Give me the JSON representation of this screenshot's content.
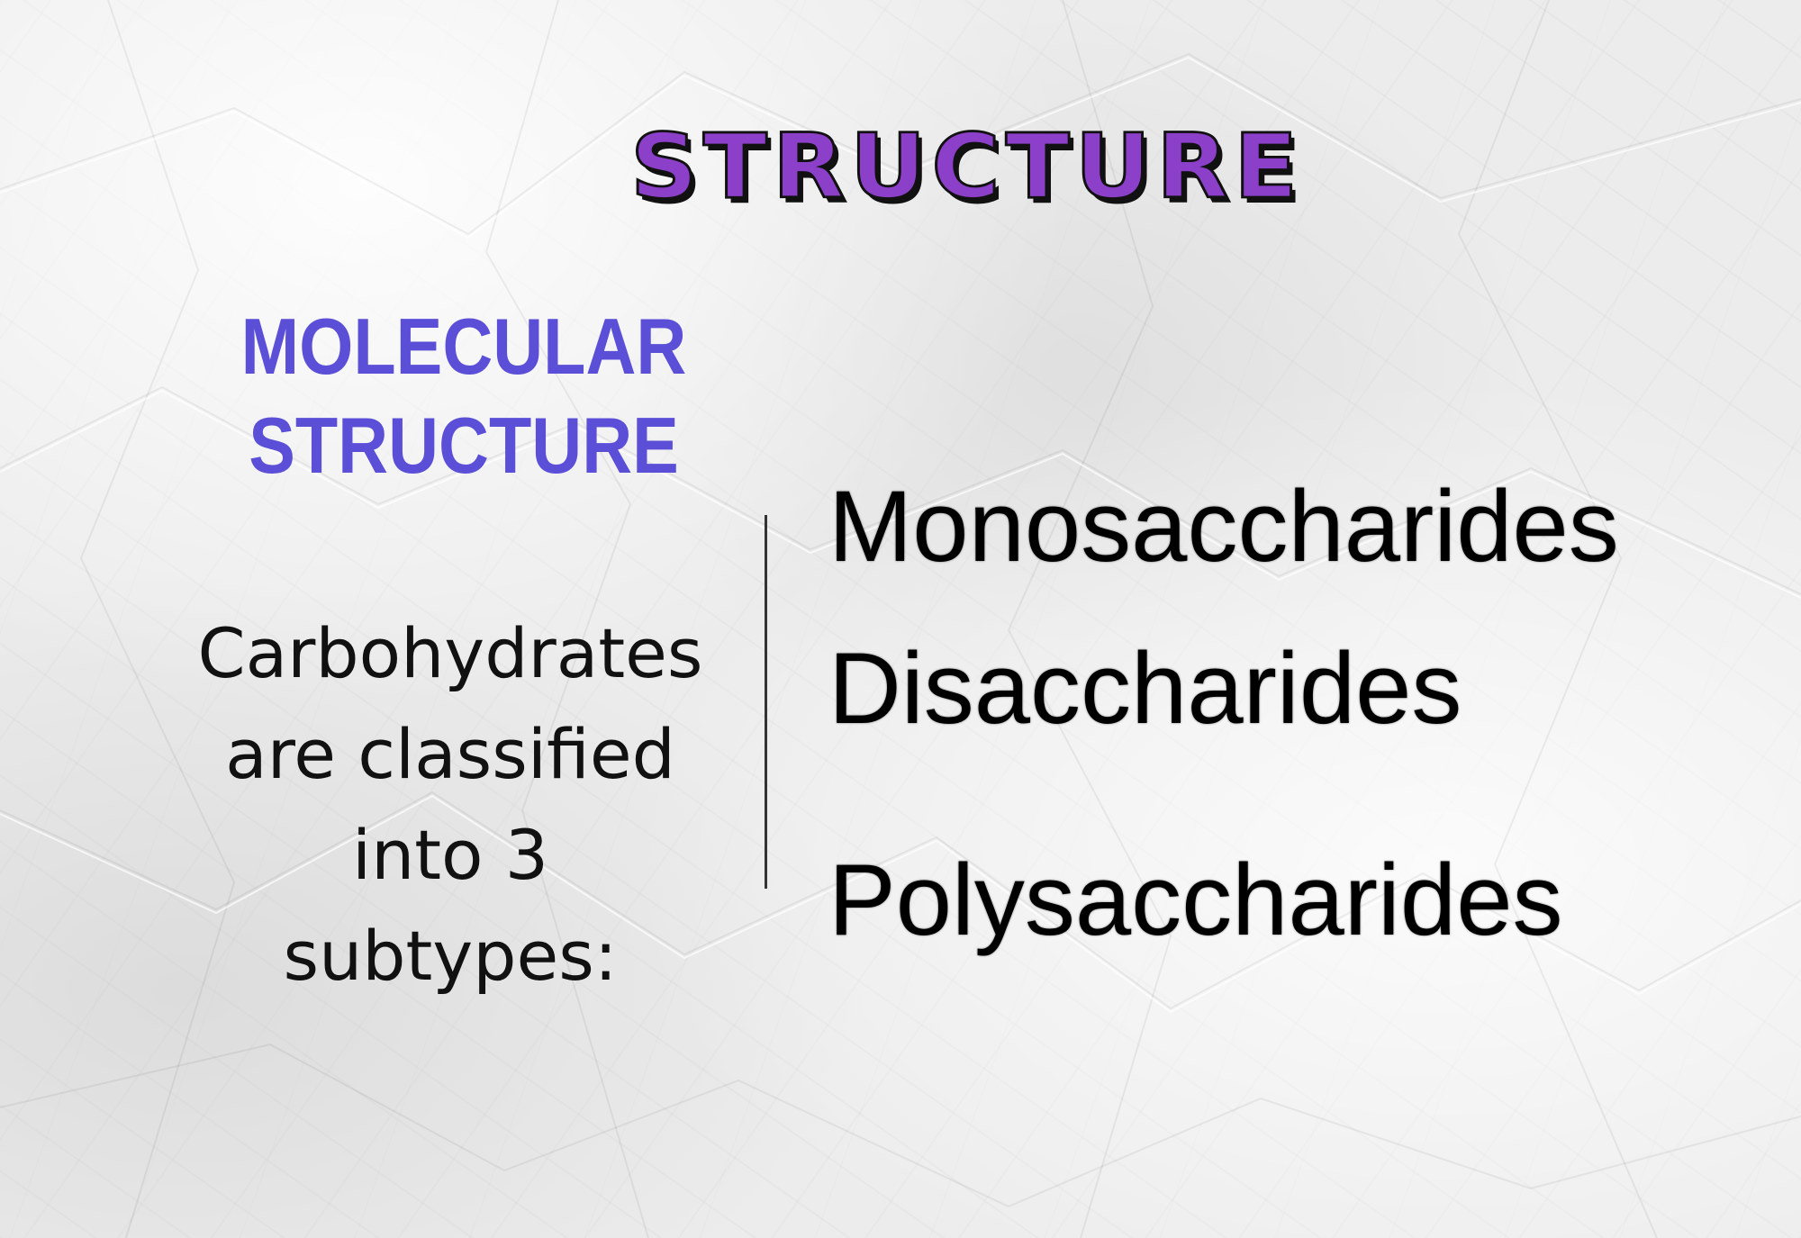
{
  "title": "STRUCTURE",
  "subheading": {
    "line1": "MOLECULAR",
    "line2": "STRUCTURE"
  },
  "description": {
    "line1": "Carbohydrates",
    "line2": "are classified",
    "line3": "into 3",
    "line4": "subtypes:"
  },
  "subtypes": [
    "Monosaccharides",
    "Disaccharides",
    "Polysaccharides"
  ],
  "colors": {
    "title": "#8c3fc8",
    "subheading": "#5b4fd8",
    "text": "#111111",
    "background": "#ececec"
  }
}
